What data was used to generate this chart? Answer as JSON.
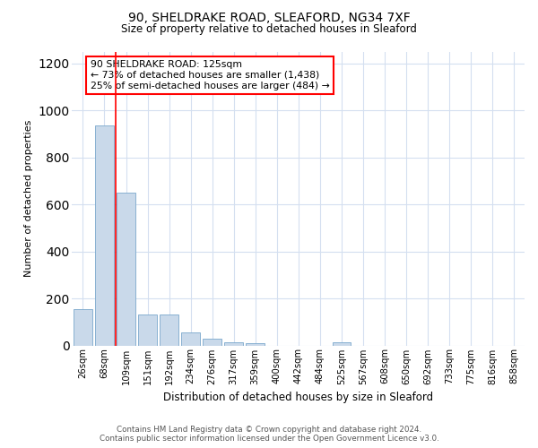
{
  "title_line1": "90, SHELDRAKE ROAD, SLEAFORD, NG34 7XF",
  "title_line2": "Size of property relative to detached houses in Sleaford",
  "xlabel": "Distribution of detached houses by size in Sleaford",
  "ylabel": "Number of detached properties",
  "categories": [
    "26sqm",
    "68sqm",
    "109sqm",
    "151sqm",
    "192sqm",
    "234sqm",
    "276sqm",
    "317sqm",
    "359sqm",
    "400sqm",
    "442sqm",
    "484sqm",
    "525sqm",
    "567sqm",
    "608sqm",
    "650sqm",
    "692sqm",
    "733sqm",
    "775sqm",
    "816sqm",
    "858sqm"
  ],
  "values": [
    155,
    935,
    650,
    130,
    130,
    55,
    28,
    12,
    10,
    0,
    0,
    0,
    12,
    0,
    0,
    0,
    0,
    0,
    0,
    0,
    0
  ],
  "bar_color": "#c9d9ea",
  "bar_edge_color": "#7aa8cc",
  "red_line_x": 2.5,
  "annotation_line1": "90 SHELDRAKE ROAD: 125sqm",
  "annotation_line2": "← 73% of detached houses are smaller (1,438)",
  "annotation_line3": "25% of semi-detached houses are larger (484) →",
  "ylim": [
    0,
    1250
  ],
  "yticks": [
    0,
    200,
    400,
    600,
    800,
    1000,
    1200
  ],
  "footer_line1": "Contains HM Land Registry data © Crown copyright and database right 2024.",
  "footer_line2": "Contains public sector information licensed under the Open Government Licence v3.0.",
  "background_color": "#ffffff",
  "grid_color": "#d4dff0"
}
